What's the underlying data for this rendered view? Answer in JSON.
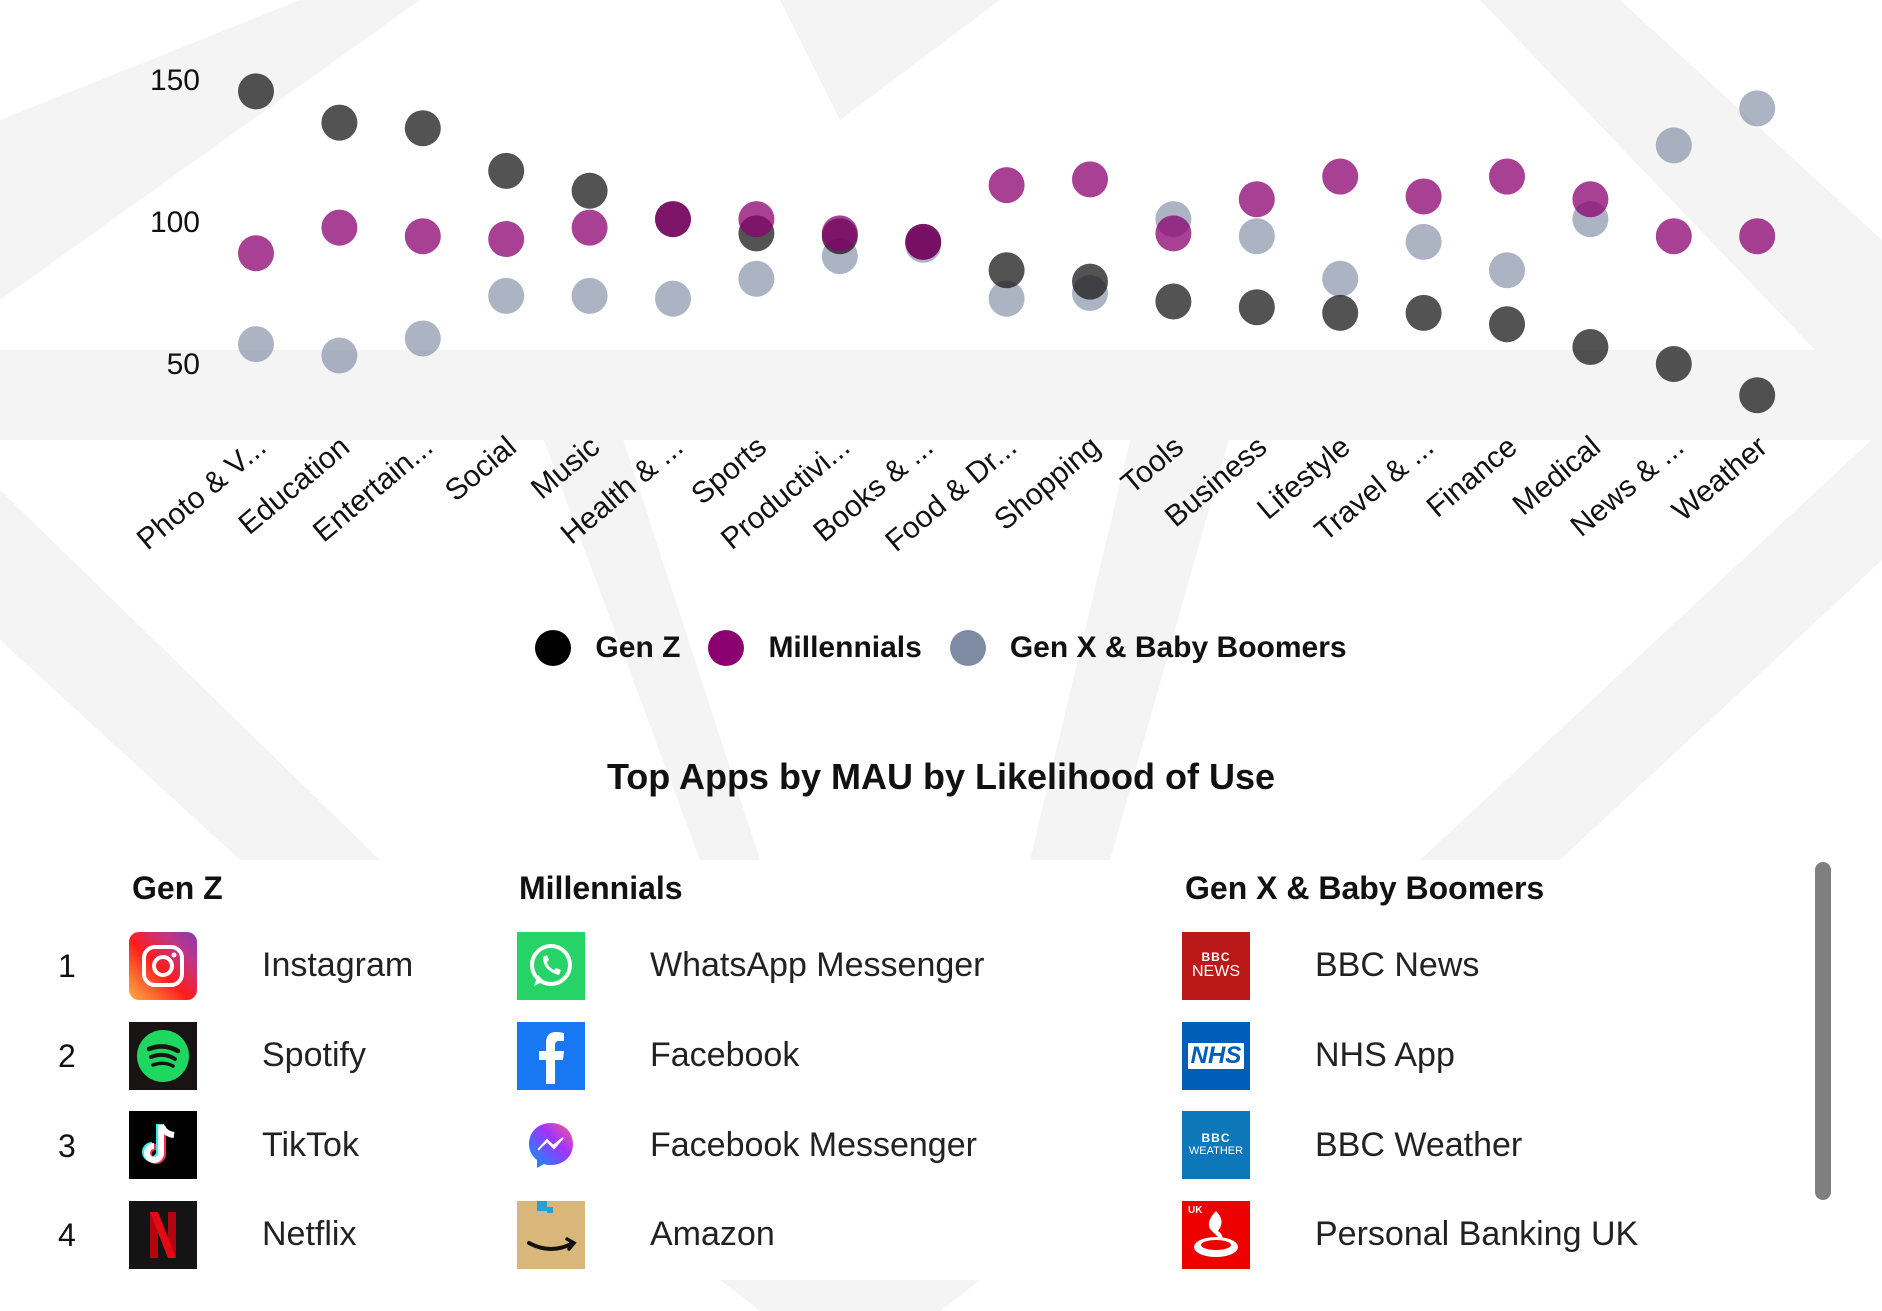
{
  "chart_data": {
    "type": "scatter",
    "categories": [
      "Photo & V...",
      "Education",
      "Entertain...",
      "Social",
      "Music",
      "Health & ...",
      "Sports",
      "Productivi...",
      "Books & ...",
      "Food & Dr...",
      "Shopping",
      "Tools",
      "Business",
      "Lifestyle",
      "Travel & ...",
      "Finance",
      "Medical",
      "News & ...",
      "Weather"
    ],
    "series": [
      {
        "name": "Gen Z",
        "color": "#1a1a1a",
        "values": [
          146,
          135,
          133,
          118,
          111,
          101,
          96,
          95,
          93,
          83,
          79,
          72,
          70,
          68,
          68,
          64,
          56,
          50,
          39
        ]
      },
      {
        "name": "Millennials",
        "color": "#8b0070",
        "values": [
          89,
          98,
          95,
          94,
          98,
          101,
          101,
          96,
          93,
          113,
          115,
          96,
          108,
          116,
          109,
          116,
          108,
          95,
          95
        ]
      },
      {
        "name": "Gen X & Baby Boomers",
        "color": "#7f8aa3",
        "values": [
          57,
          53,
          59,
          74,
          74,
          73,
          80,
          88,
          92,
          73,
          75,
          101,
          95,
          80,
          93,
          83,
          101,
          127,
          140
        ]
      }
    ],
    "yticks": [
      50,
      100,
      150
    ],
    "ylim": [
      30,
      160
    ],
    "legend_position": "bottom"
  },
  "legend": [
    {
      "label": "Gen Z",
      "color": "#000000"
    },
    {
      "label": "Millennials",
      "color": "#8b0070"
    },
    {
      "label": "Gen X & Baby Boomers",
      "color": "#7f8aa3"
    }
  ],
  "top_apps": {
    "title": "Top Apps by MAU by Likelihood of Use",
    "columns": [
      {
        "heading": "Gen Z",
        "apps": [
          {
            "rank": "1",
            "name": "Instagram",
            "icon": "instagram-icon"
          },
          {
            "rank": "2",
            "name": "Spotify",
            "icon": "spotify-icon"
          },
          {
            "rank": "3",
            "name": "TikTok",
            "icon": "tiktok-icon"
          },
          {
            "rank": "4",
            "name": "Netflix",
            "icon": "netflix-icon"
          }
        ]
      },
      {
        "heading": "Millennials",
        "apps": [
          {
            "name": "WhatsApp Messenger",
            "icon": "whatsapp-icon"
          },
          {
            "name": "Facebook",
            "icon": "facebook-icon"
          },
          {
            "name": "Facebook Messenger",
            "icon": "messenger-icon"
          },
          {
            "name": "Amazon",
            "icon": "amazon-icon"
          }
        ]
      },
      {
        "heading": "Gen X & Baby Boomers",
        "apps": [
          {
            "name": "BBC News",
            "icon": "bbc-news-icon",
            "icon_text": [
              "BBC",
              "NEWS"
            ]
          },
          {
            "name": "NHS App",
            "icon": "nhs-icon",
            "icon_text": [
              "NHS"
            ]
          },
          {
            "name": "BBC Weather",
            "icon": "bbc-weather-icon",
            "icon_text": [
              "BBC",
              "WEATHER"
            ]
          },
          {
            "name": "Personal Banking UK",
            "icon": "santander-icon",
            "icon_text": [
              "UK"
            ]
          }
        ]
      }
    ]
  }
}
